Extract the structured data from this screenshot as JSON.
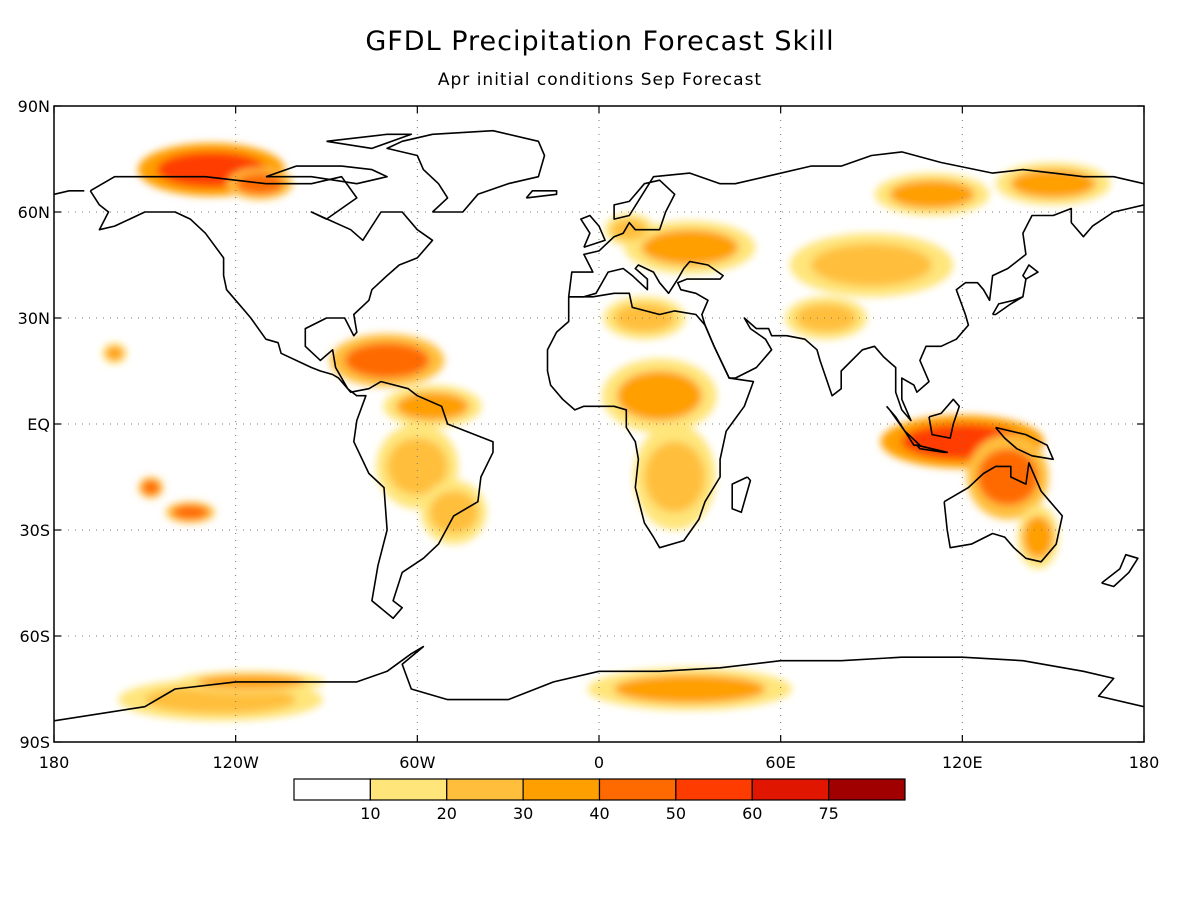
{
  "title": "GFDL Precipitation Forecast Skill",
  "subtitle": "Apr initial conditions  Sep Forecast",
  "map": {
    "lon_range": [
      -180,
      180
    ],
    "lat_range": [
      -90,
      90
    ],
    "x_ticks": [
      {
        "lon": -180,
        "label": "180"
      },
      {
        "lon": -120,
        "label": "120W"
      },
      {
        "lon": -60,
        "label": "60W"
      },
      {
        "lon": 0,
        "label": "0"
      },
      {
        "lon": 60,
        "label": "60E"
      },
      {
        "lon": 120,
        "label": "120E"
      },
      {
        "lon": 180,
        "label": "180"
      }
    ],
    "y_ticks": [
      {
        "lat": 90,
        "label": "90N"
      },
      {
        "lat": 60,
        "label": "60N"
      },
      {
        "lat": 30,
        "label": "30N"
      },
      {
        "lat": 0,
        "label": "EQ"
      },
      {
        "lat": -30,
        "label": "30S"
      },
      {
        "lat": -60,
        "label": "60S"
      },
      {
        "lat": -90,
        "label": "90S"
      }
    ],
    "gridlines": "dotted"
  },
  "colorbar": {
    "levels": [
      "10",
      "20",
      "30",
      "40",
      "50",
      "60",
      "75"
    ],
    "colors": [
      "#ffffff",
      "#ffe57a",
      "#ffbf3c",
      "#ff9f00",
      "#ff6a00",
      "#ff3c00",
      "#e01600",
      "#a00000"
    ]
  },
  "skill_regions": [
    {
      "lon": -128,
      "lat": 72,
      "rx": 18,
      "ry": 5,
      "level": 5
    },
    {
      "lon": -112,
      "lat": 68,
      "rx": 8,
      "ry": 3,
      "level": 4
    },
    {
      "lon": -70,
      "lat": 18,
      "rx": 14,
      "ry": 5,
      "level": 4
    },
    {
      "lon": -55,
      "lat": 5,
      "rx": 12,
      "ry": 4,
      "level": 3
    },
    {
      "lon": -60,
      "lat": -12,
      "rx": 10,
      "ry": 8,
      "level": 2
    },
    {
      "lon": -48,
      "lat": -25,
      "rx": 8,
      "ry": 6,
      "level": 2
    },
    {
      "lon": -160,
      "lat": 20,
      "rx": 3,
      "ry": 2,
      "level": 3
    },
    {
      "lon": -148,
      "lat": -18,
      "rx": 3,
      "ry": 2,
      "level": 4
    },
    {
      "lon": -135,
      "lat": -25,
      "rx": 6,
      "ry": 2,
      "level": 4
    },
    {
      "lon": 20,
      "lat": 8,
      "rx": 14,
      "ry": 7,
      "level": 3
    },
    {
      "lon": 25,
      "lat": -15,
      "rx": 10,
      "ry": 10,
      "level": 2
    },
    {
      "lon": 15,
      "lat": 30,
      "rx": 10,
      "ry": 4,
      "level": 2
    },
    {
      "lon": 30,
      "lat": 50,
      "rx": 16,
      "ry": 5,
      "level": 3
    },
    {
      "lon": 90,
      "lat": 45,
      "rx": 20,
      "ry": 6,
      "level": 2
    },
    {
      "lon": 110,
      "lat": 65,
      "rx": 14,
      "ry": 4,
      "level": 3
    },
    {
      "lon": 150,
      "lat": 68,
      "rx": 14,
      "ry": 4,
      "level": 3
    },
    {
      "lon": 120,
      "lat": -5,
      "rx": 20,
      "ry": 5,
      "level": 5
    },
    {
      "lon": 135,
      "lat": -15,
      "rx": 10,
      "ry": 8,
      "level": 4
    },
    {
      "lon": 145,
      "lat": -32,
      "rx": 5,
      "ry": 6,
      "level": 3
    },
    {
      "lon": 30,
      "lat": -75,
      "rx": 25,
      "ry": 4,
      "level": 3
    },
    {
      "lon": -125,
      "lat": -78,
      "rx": 25,
      "ry": 4,
      "level": 2
    },
    {
      "lon": -115,
      "lat": -73,
      "rx": 18,
      "ry": 2,
      "level": 3
    },
    {
      "lon": 75,
      "lat": 30,
      "rx": 10,
      "ry": 4,
      "level": 2
    },
    {
      "lon": 10,
      "lat": 55,
      "rx": 6,
      "ry": 3,
      "level": 2
    }
  ],
  "coastlines": [
    [
      [
        -168,
        66
      ],
      [
        -160,
        70
      ],
      [
        -145,
        70
      ],
      [
        -130,
        70
      ],
      [
        -120,
        69
      ],
      [
        -110,
        68
      ],
      [
        -95,
        68
      ],
      [
        -85,
        70
      ],
      [
        -80,
        64
      ],
      [
        -90,
        58
      ],
      [
        -95,
        60
      ],
      [
        -82,
        55
      ],
      [
        -78,
        52
      ],
      [
        -72,
        60
      ],
      [
        -65,
        60
      ],
      [
        -60,
        55
      ],
      [
        -55,
        52
      ],
      [
        -60,
        47
      ],
      [
        -66,
        45
      ],
      [
        -70,
        42
      ],
      [
        -75,
        38
      ],
      [
        -76,
        35
      ],
      [
        -81,
        31
      ],
      [
        -80,
        26
      ],
      [
        -81,
        25
      ],
      [
        -84,
        30
      ],
      [
        -90,
        30
      ],
      [
        -97,
        27
      ],
      [
        -97,
        22
      ],
      [
        -92,
        18
      ],
      [
        -88,
        21
      ],
      [
        -87,
        16
      ],
      [
        -83,
        10
      ],
      [
        -80,
        8
      ],
      [
        -77,
        8
      ],
      [
        -80,
        1
      ],
      [
        -81,
        -5
      ],
      [
        -76,
        -14
      ],
      [
        -71,
        -18
      ],
      [
        -70,
        -30
      ],
      [
        -73,
        -40
      ],
      [
        -75,
        -50
      ],
      [
        -68,
        -55
      ],
      [
        -65,
        -52
      ],
      [
        -68,
        -50
      ],
      [
        -65,
        -42
      ],
      [
        -58,
        -38
      ],
      [
        -53,
        -34
      ],
      [
        -48,
        -26
      ],
      [
        -40,
        -22
      ],
      [
        -39,
        -15
      ],
      [
        -35,
        -8
      ],
      [
        -35,
        -5
      ],
      [
        -44,
        -2
      ],
      [
        -50,
        0
      ],
      [
        -52,
        5
      ],
      [
        -60,
        8
      ],
      [
        -63,
        10
      ],
      [
        -72,
        12
      ],
      [
        -76,
        10
      ],
      [
        -82,
        9
      ],
      [
        -86,
        13
      ],
      [
        -88,
        14
      ],
      [
        -92,
        15
      ],
      [
        -95,
        16
      ],
      [
        -105,
        20
      ],
      [
        -106,
        23
      ],
      [
        -110,
        24
      ],
      [
        -115,
        30
      ],
      [
        -117,
        32
      ],
      [
        -120,
        35
      ],
      [
        -123,
        38
      ],
      [
        -124,
        42
      ],
      [
        -124,
        47
      ],
      [
        -130,
        54
      ],
      [
        -135,
        58
      ],
      [
        -140,
        60
      ],
      [
        -150,
        60
      ],
      [
        -155,
        58
      ],
      [
        -160,
        56
      ],
      [
        -165,
        55
      ],
      [
        -162,
        60
      ],
      [
        -165,
        62
      ],
      [
        -168,
        66
      ]
    ],
    [
      [
        -55,
        60
      ],
      [
        -45,
        60
      ],
      [
        -40,
        65
      ],
      [
        -30,
        68
      ],
      [
        -20,
        70
      ],
      [
        -18,
        76
      ],
      [
        -20,
        80
      ],
      [
        -35,
        83
      ],
      [
        -55,
        82
      ],
      [
        -65,
        80
      ],
      [
        -70,
        78
      ],
      [
        -60,
        76
      ],
      [
        -58,
        72
      ],
      [
        -53,
        68
      ],
      [
        -50,
        64
      ],
      [
        -55,
        60
      ]
    ],
    [
      [
        -10,
        36
      ],
      [
        -6,
        36
      ],
      [
        -2,
        36
      ],
      [
        5,
        37
      ],
      [
        10,
        37
      ],
      [
        11,
        33
      ],
      [
        20,
        31
      ],
      [
        25,
        32
      ],
      [
        32,
        31
      ],
      [
        35,
        28
      ],
      [
        38,
        22
      ],
      [
        43,
        13
      ],
      [
        51,
        12
      ],
      [
        48,
        5
      ],
      [
        42,
        -2
      ],
      [
        40,
        -10
      ],
      [
        40,
        -15
      ],
      [
        35,
        -22
      ],
      [
        33,
        -27
      ],
      [
        28,
        -33
      ],
      [
        20,
        -35
      ],
      [
        18,
        -32
      ],
      [
        15,
        -28
      ],
      [
        12,
        -18
      ],
      [
        13,
        -10
      ],
      [
        12,
        -5
      ],
      [
        9,
        -1
      ],
      [
        9,
        4
      ],
      [
        5,
        5
      ],
      [
        0,
        5
      ],
      [
        -5,
        5
      ],
      [
        -8,
        4
      ],
      [
        -12,
        7
      ],
      [
        -16,
        11
      ],
      [
        -17,
        15
      ],
      [
        -17,
        21
      ],
      [
        -14,
        26
      ],
      [
        -10,
        29
      ],
      [
        -10,
        36
      ]
    ],
    [
      [
        -10,
        36
      ],
      [
        -9,
        43
      ],
      [
        -2,
        43
      ],
      [
        -5,
        48
      ],
      [
        0,
        49
      ],
      [
        5,
        53
      ],
      [
        8,
        54
      ],
      [
        10,
        57
      ],
      [
        12,
        55
      ],
      [
        20,
        55
      ],
      [
        22,
        60
      ],
      [
        25,
        65
      ],
      [
        20,
        69
      ],
      [
        15,
        68
      ],
      [
        10,
        63
      ],
      [
        5,
        62
      ],
      [
        5,
        58
      ],
      [
        10,
        59
      ],
      [
        18,
        70
      ],
      [
        30,
        71
      ],
      [
        40,
        68
      ],
      [
        45,
        68
      ],
      [
        55,
        70
      ],
      [
        70,
        73
      ],
      [
        80,
        73
      ],
      [
        90,
        76
      ],
      [
        100,
        77
      ],
      [
        113,
        74
      ],
      [
        130,
        71
      ],
      [
        140,
        72
      ],
      [
        150,
        71
      ],
      [
        160,
        70
      ],
      [
        170,
        70
      ],
      [
        180,
        68
      ]
    ],
    [
      [
        -180,
        65
      ],
      [
        -175,
        66
      ],
      [
        -170,
        66
      ]
    ],
    [
      [
        180,
        62
      ],
      [
        170,
        60
      ],
      [
        163,
        56
      ],
      [
        160,
        53
      ],
      [
        156,
        57
      ],
      [
        156,
        61
      ],
      [
        150,
        59
      ],
      [
        143,
        59
      ],
      [
        140,
        54
      ],
      [
        141,
        48
      ],
      [
        135,
        44
      ],
      [
        130,
        42
      ],
      [
        129,
        35
      ],
      [
        127,
        38
      ],
      [
        125,
        40
      ],
      [
        121,
        40
      ],
      [
        118,
        38
      ],
      [
        121,
        31
      ],
      [
        122,
        28
      ],
      [
        118,
        24
      ],
      [
        113,
        22
      ],
      [
        108,
        22
      ],
      [
        106,
        18
      ],
      [
        109,
        12
      ],
      [
        105,
        9
      ],
      [
        104,
        11
      ],
      [
        100,
        13
      ],
      [
        100,
        7
      ],
      [
        103,
        1
      ],
      [
        100,
        4
      ],
      [
        98,
        9
      ],
      [
        98,
        16
      ],
      [
        94,
        19
      ],
      [
        91,
        22
      ],
      [
        87,
        21
      ],
      [
        80,
        15
      ],
      [
        80,
        10
      ],
      [
        77,
        8
      ],
      [
        73,
        18
      ],
      [
        72,
        21
      ],
      [
        68,
        24
      ],
      [
        62,
        25
      ],
      [
        57,
        25
      ],
      [
        56,
        27
      ],
      [
        52,
        27
      ],
      [
        48,
        30
      ],
      [
        50,
        27
      ],
      [
        55,
        24
      ],
      [
        57,
        21
      ],
      [
        52,
        16
      ],
      [
        45,
        13
      ],
      [
        43,
        13
      ],
      [
        38,
        22
      ],
      [
        35,
        28
      ],
      [
        34,
        31
      ],
      [
        36,
        35
      ],
      [
        32,
        37
      ],
      [
        27,
        38
      ],
      [
        26,
        40
      ],
      [
        29,
        41
      ],
      [
        40,
        41
      ],
      [
        41,
        42
      ],
      [
        36,
        45
      ],
      [
        30,
        46
      ],
      [
        28,
        44
      ],
      [
        26,
        41
      ],
      [
        23,
        37
      ],
      [
        20,
        40
      ],
      [
        18,
        43
      ],
      [
        13,
        45
      ],
      [
        12,
        44
      ],
      [
        16,
        41
      ],
      [
        16,
        38
      ],
      [
        11,
        42
      ],
      [
        8,
        44
      ],
      [
        3,
        43
      ],
      [
        -1,
        37
      ],
      [
        -5,
        36
      ],
      [
        -10,
        36
      ]
    ],
    [
      [
        114,
        -22
      ],
      [
        122,
        -18
      ],
      [
        127,
        -14
      ],
      [
        131,
        -12
      ],
      [
        136,
        -12
      ],
      [
        136,
        -15
      ],
      [
        141,
        -17
      ],
      [
        142,
        -11
      ],
      [
        146,
        -19
      ],
      [
        153,
        -26
      ],
      [
        151,
        -34
      ],
      [
        146,
        -39
      ],
      [
        141,
        -38
      ],
      [
        137,
        -35
      ],
      [
        134,
        -32
      ],
      [
        130,
        -31
      ],
      [
        123,
        -34
      ],
      [
        116,
        -35
      ],
      [
        115,
        -30
      ],
      [
        114,
        -22
      ]
    ],
    [
      [
        -180,
        -84
      ],
      [
        -150,
        -80
      ],
      [
        -140,
        -75
      ],
      [
        -120,
        -73
      ],
      [
        -100,
        -73
      ],
      [
        -80,
        -73
      ],
      [
        -70,
        -70
      ],
      [
        -62,
        -65
      ],
      [
        -58,
        -63
      ],
      [
        -65,
        -68
      ],
      [
        -62,
        -75
      ],
      [
        -50,
        -78
      ],
      [
        -30,
        -78
      ],
      [
        -15,
        -73
      ],
      [
        0,
        -70
      ],
      [
        20,
        -70
      ],
      [
        40,
        -69
      ],
      [
        60,
        -67
      ],
      [
        80,
        -67
      ],
      [
        100,
        -66
      ],
      [
        120,
        -66
      ],
      [
        140,
        -67
      ],
      [
        160,
        -70
      ],
      [
        170,
        -72
      ],
      [
        165,
        -77
      ],
      [
        180,
        -80
      ]
    ],
    [
      [
        95,
        5
      ],
      [
        98,
        2
      ],
      [
        104,
        -6
      ],
      [
        106,
        -6
      ],
      [
        101,
        -2
      ],
      [
        96,
        4
      ],
      [
        95,
        5
      ]
    ],
    [
      [
        109,
        2
      ],
      [
        113,
        3
      ],
      [
        117,
        7
      ],
      [
        119,
        5
      ],
      [
        117,
        0
      ],
      [
        116,
        -4
      ],
      [
        110,
        -3
      ],
      [
        109,
        2
      ]
    ],
    [
      [
        105,
        -6
      ],
      [
        115,
        -8
      ],
      [
        114,
        -8
      ],
      [
        106,
        -7
      ],
      [
        105,
        -6
      ]
    ],
    [
      [
        131,
        -1
      ],
      [
        141,
        -3
      ],
      [
        148,
        -6
      ],
      [
        150,
        -10
      ],
      [
        143,
        -9
      ],
      [
        138,
        -7
      ],
      [
        134,
        -4
      ],
      [
        131,
        -1
      ]
    ],
    [
      [
        130,
        31
      ],
      [
        132,
        34
      ],
      [
        137,
        35
      ],
      [
        140,
        36
      ],
      [
        141,
        41
      ],
      [
        140,
        42
      ],
      [
        142,
        45
      ],
      [
        145,
        43
      ],
      [
        141,
        41
      ],
      [
        140,
        36
      ],
      [
        136,
        34
      ],
      [
        131,
        31
      ],
      [
        130,
        31
      ]
    ],
    [
      [
        -5,
        50
      ],
      [
        -3,
        54
      ],
      [
        -6,
        58
      ],
      [
        -3,
        59
      ],
      [
        0,
        56
      ],
      [
        2,
        52
      ],
      [
        -5,
        50
      ]
    ],
    [
      [
        -24,
        64
      ],
      [
        -14,
        65
      ],
      [
        -14,
        66
      ],
      [
        -22,
        66
      ],
      [
        -24,
        64
      ]
    ],
    [
      [
        49,
        -15
      ],
      [
        50,
        -16
      ],
      [
        47,
        -25
      ],
      [
        44,
        -24
      ],
      [
        44,
        -17
      ],
      [
        49,
        -15
      ]
    ],
    [
      [
        166,
        -45
      ],
      [
        172,
        -41
      ],
      [
        174,
        -37
      ],
      [
        178,
        -38
      ],
      [
        175,
        -42
      ],
      [
        170,
        -46
      ],
      [
        166,
        -45
      ]
    ],
    [
      [
        -110,
        70
      ],
      [
        -100,
        73
      ],
      [
        -85,
        73
      ],
      [
        -75,
        72
      ],
      [
        -70,
        70
      ],
      [
        -80,
        68
      ],
      [
        -95,
        70
      ],
      [
        -110,
        70
      ]
    ],
    [
      [
        -90,
        80
      ],
      [
        -70,
        82
      ],
      [
        -62,
        82
      ],
      [
        -75,
        78
      ],
      [
        -90,
        80
      ]
    ]
  ]
}
